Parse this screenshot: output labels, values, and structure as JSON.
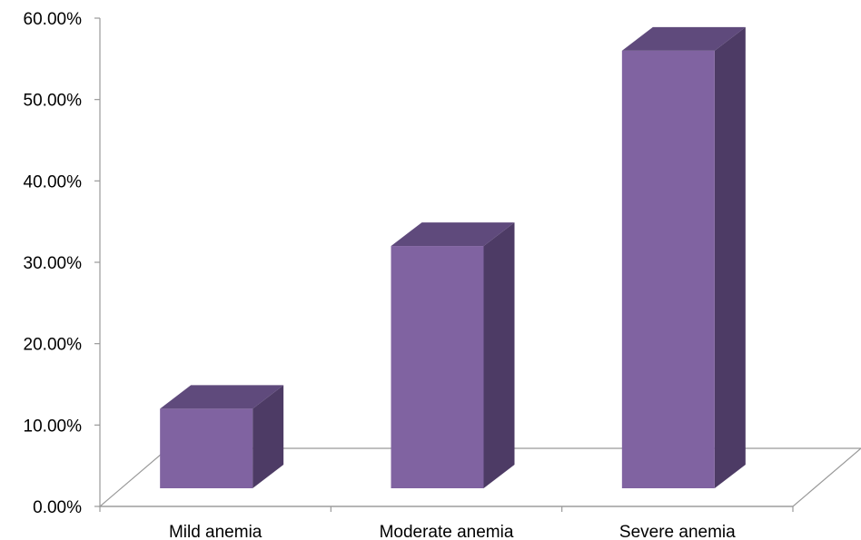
{
  "chart_data": {
    "type": "bar",
    "style": "3d-column",
    "categories": [
      "Mild anemia",
      "Moderate anemia",
      "Severe anemia"
    ],
    "values": [
      12.0,
      32.0,
      56.0
    ],
    "ylim": [
      0,
      60
    ],
    "yticks": [
      "0.00%",
      "10.00%",
      "20.00%",
      "30.00%",
      "40.00%",
      "50.00%",
      "60.00%"
    ],
    "grid": false,
    "legend": "none",
    "colors": {
      "bar_front": "#8063a1",
      "bar_top": "#5f4a7c",
      "bar_side": "#4d3b65",
      "axis": "#999999"
    }
  }
}
